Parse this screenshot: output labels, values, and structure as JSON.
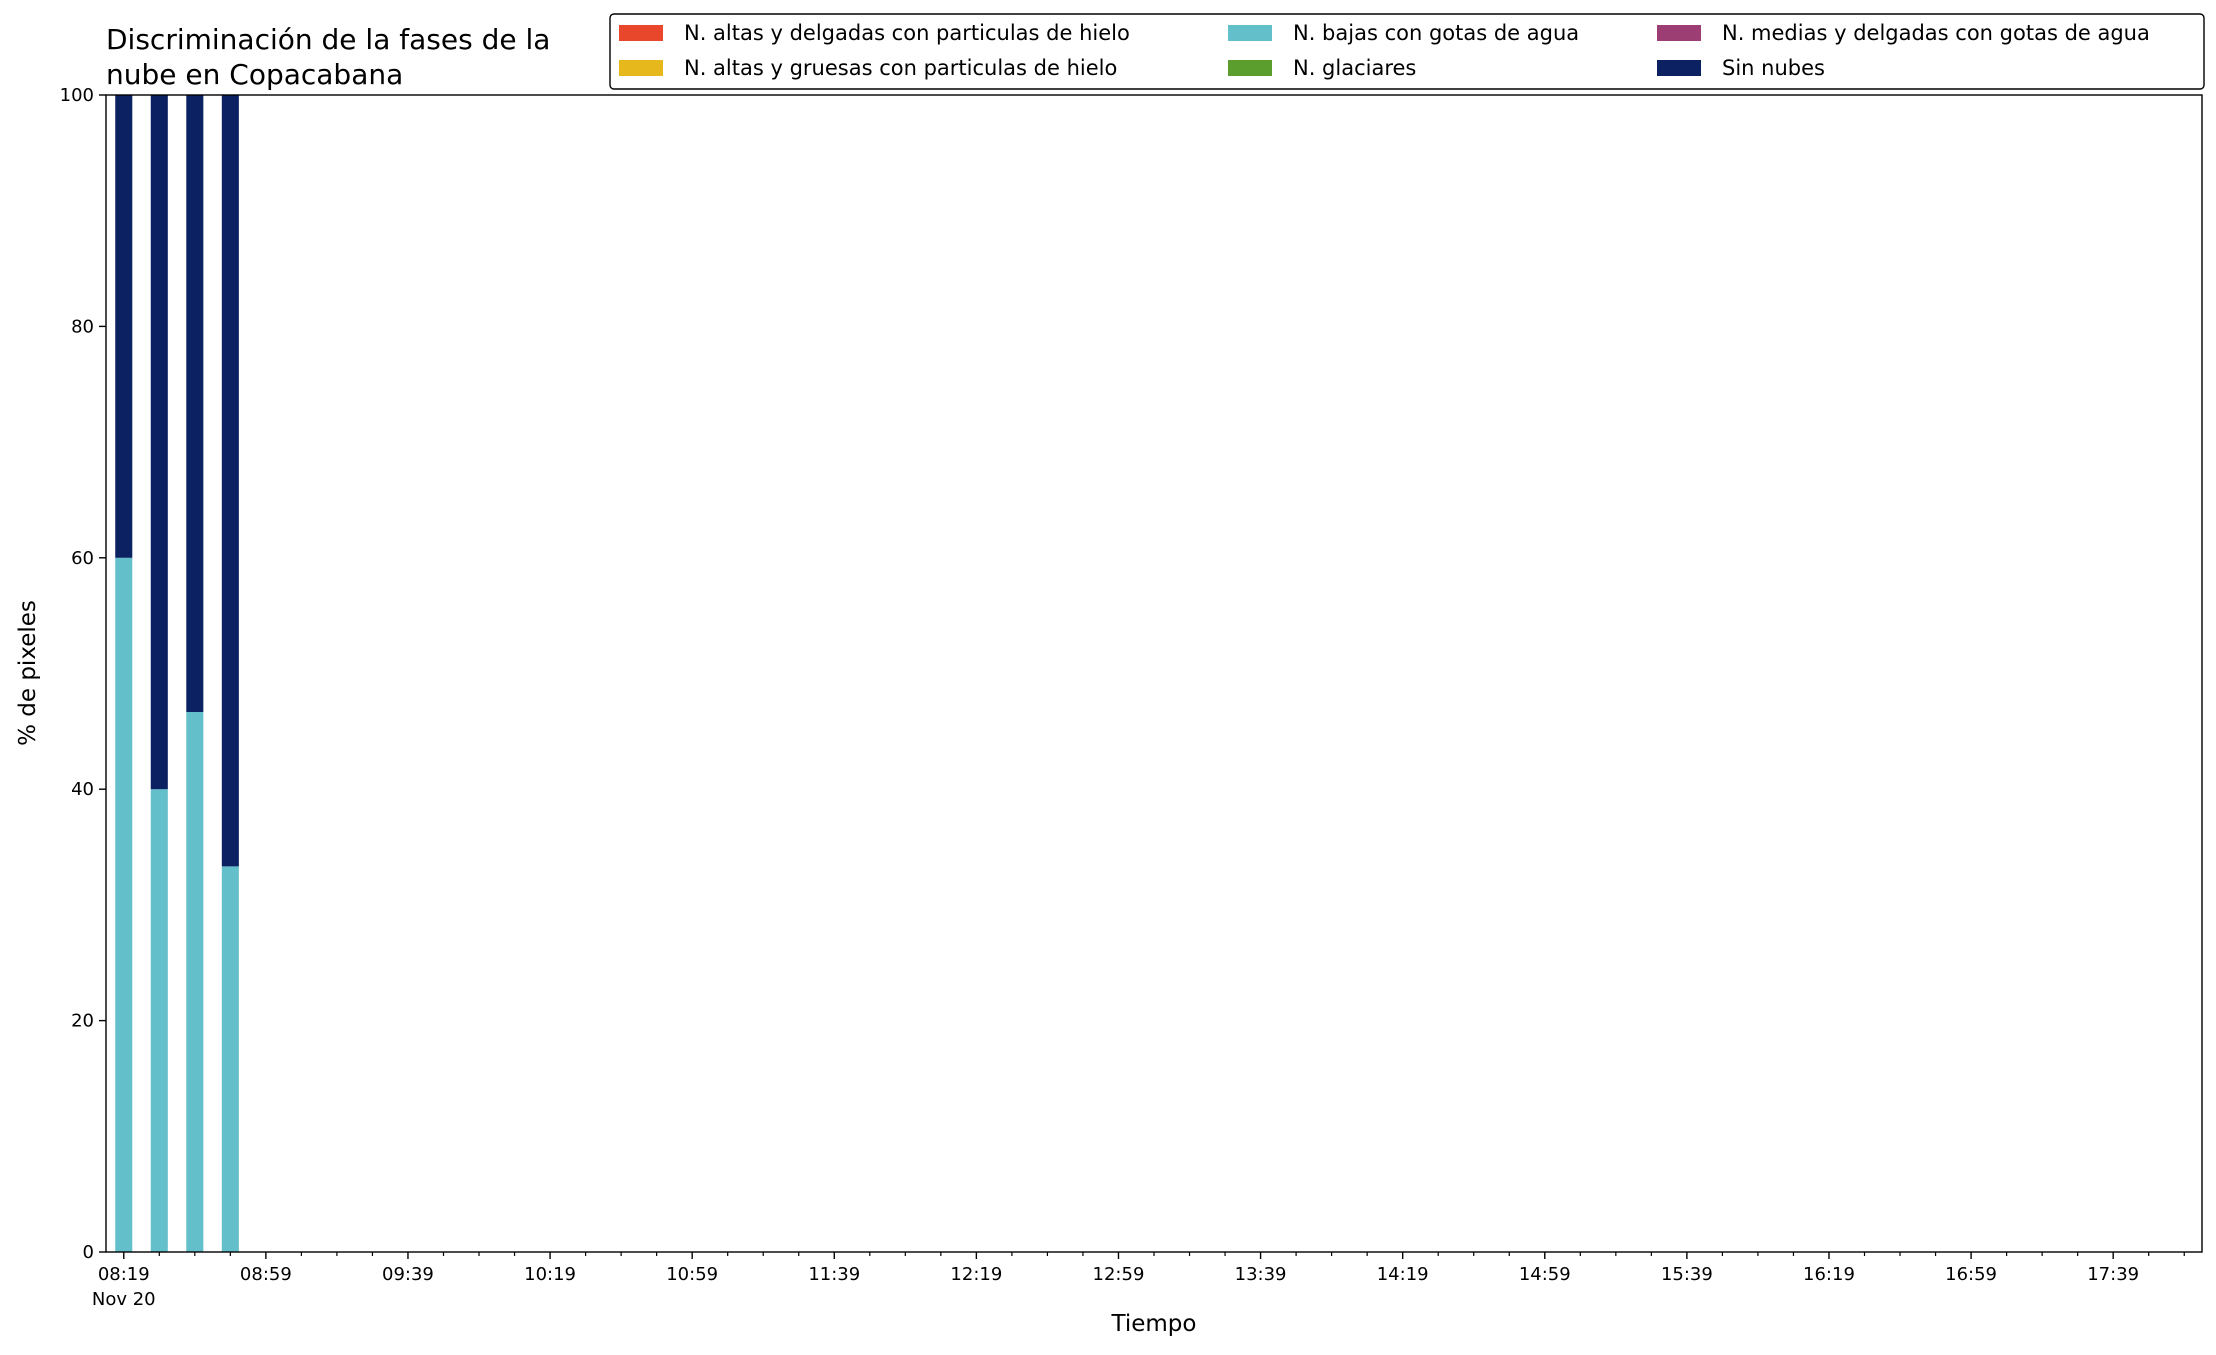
{
  "chart_data": {
    "type": "stacked_bar",
    "title": "Discriminación de la fases de la nube en Copacabana",
    "xlabel": "Tiempo",
    "ylabel": "% de pixeles",
    "x": [
      "08:19",
      "08:29",
      "08:39",
      "08:49"
    ],
    "series": [
      {
        "name": "N. altas y delgadas con particulas de hielo",
        "color": "#e8472c",
        "values": [
          0,
          0,
          0,
          0
        ]
      },
      {
        "name": "N. altas y gruesas con particulas de hielo",
        "color": "#e6b81c",
        "values": [
          0,
          0,
          0,
          0
        ]
      },
      {
        "name": "N. bajas con gotas de agua",
        "color": "#63bfca",
        "values": [
          60,
          40,
          46.67,
          33.33
        ]
      },
      {
        "name": "N. glaciares",
        "color": "#5c9e2e",
        "values": [
          0,
          0,
          0,
          0
        ]
      },
      {
        "name": "N. medias y delgadas con gotas de agua",
        "color": "#9c3d74",
        "values": [
          0,
          0,
          0,
          0
        ]
      },
      {
        "name": "Sin nubes",
        "color": "#0b2161",
        "values": [
          40,
          60,
          53.33,
          66.67
        ]
      }
    ],
    "xlim": [
      "08:14",
      "18:04"
    ],
    "xticks": [
      "08:19",
      "08:59",
      "09:39",
      "10:19",
      "10:59",
      "11:39",
      "12:19",
      "12:59",
      "13:39",
      "14:19",
      "14:59",
      "15:39",
      "16:19",
      "16:59",
      "17:39"
    ],
    "xminorticks": [
      "08:29",
      "08:39",
      "08:49",
      "09:09",
      "09:19",
      "09:29",
      "09:49",
      "09:59",
      "10:09",
      "10:29",
      "10:39",
      "10:49",
      "11:09",
      "11:19",
      "11:29",
      "11:49",
      "11:59",
      "12:09",
      "12:29",
      "12:39",
      "12:49",
      "13:09",
      "13:19",
      "13:29",
      "13:49",
      "13:59",
      "14:09",
      "14:29",
      "14:39",
      "14:49",
      "15:09",
      "15:19",
      "15:29",
      "15:49",
      "15:59",
      "16:09",
      "16:29",
      "16:39",
      "16:49",
      "17:09",
      "17:19",
      "17:29",
      "17:49",
      "17:59"
    ],
    "date_label": "Nov 20",
    "ylim": [
      0,
      100
    ],
    "yticks": [
      0,
      20,
      40,
      60,
      80,
      100
    ],
    "legend": "top-right"
  }
}
